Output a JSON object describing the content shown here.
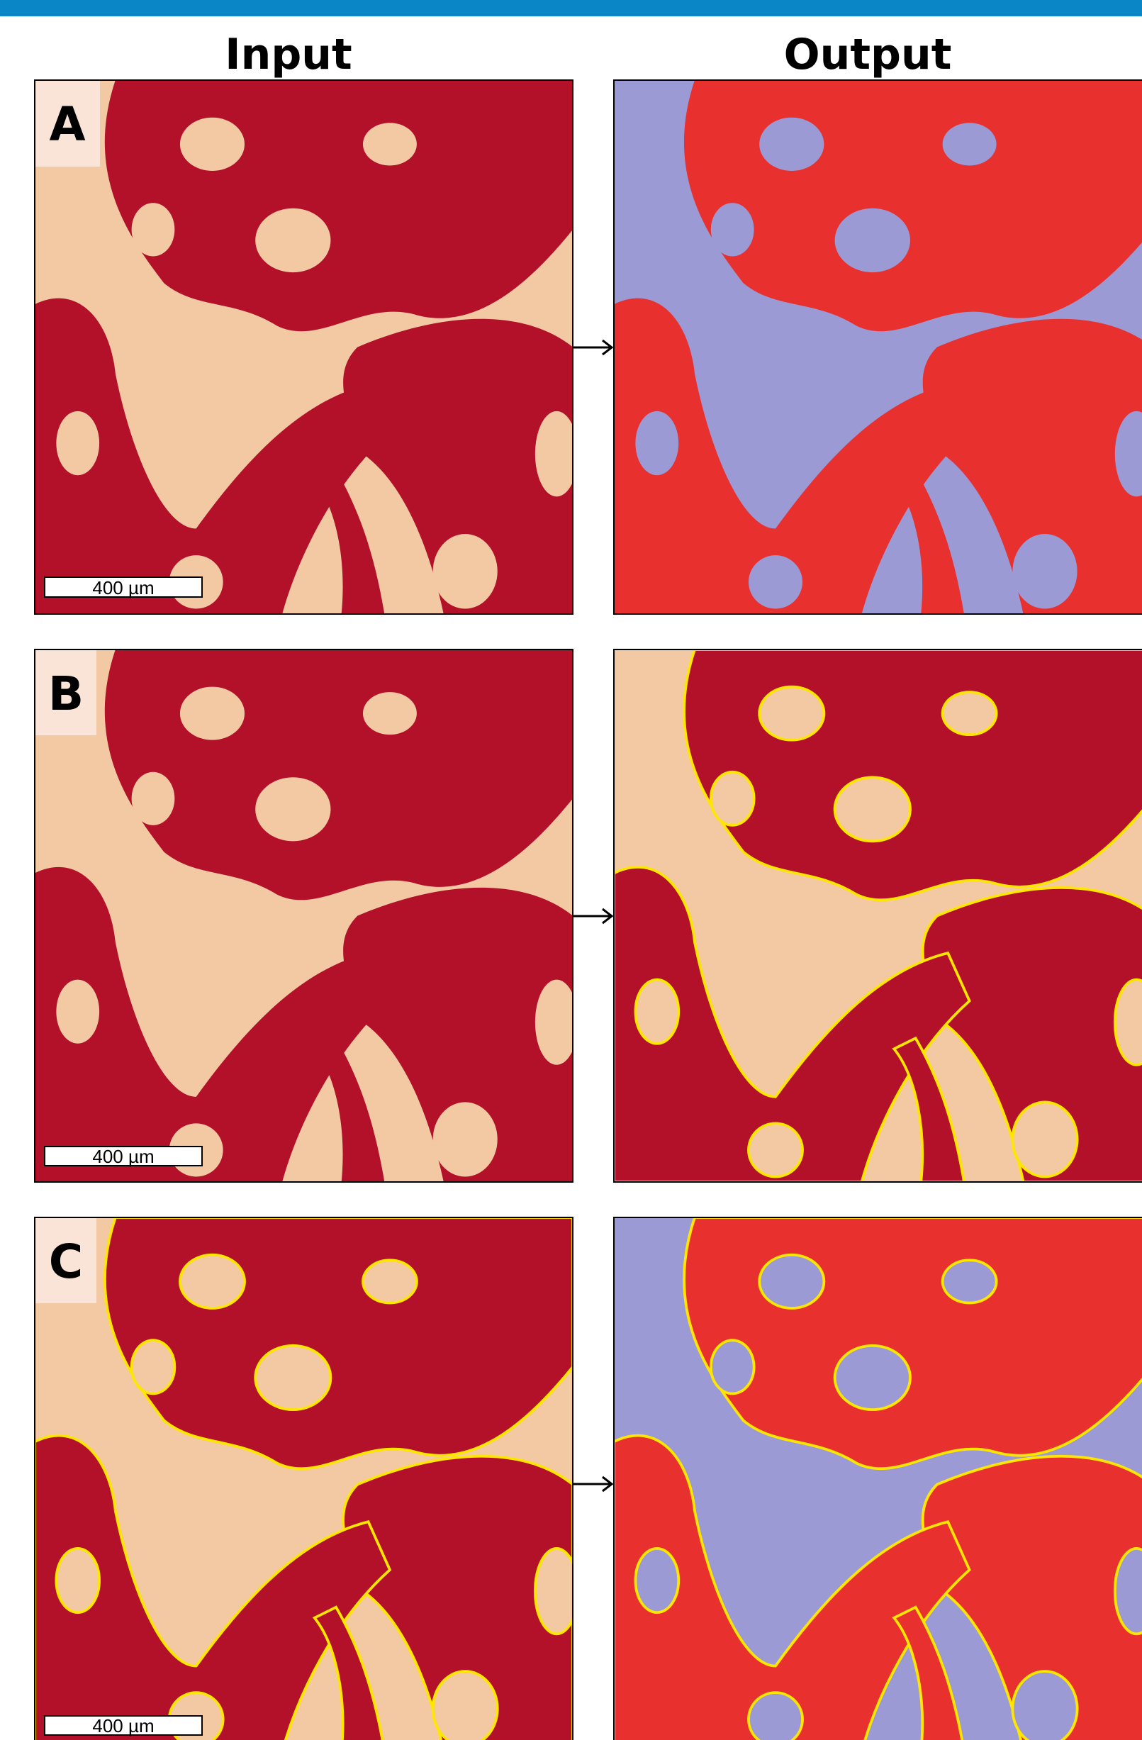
{
  "header": {
    "columns": [
      "Input",
      "Output"
    ]
  },
  "rows": [
    {
      "label": "A",
      "scale_bar": "400 µm"
    },
    {
      "label": "B",
      "scale_bar": "400 µm"
    },
    {
      "label": "C",
      "scale_bar": "400 µm"
    }
  ]
}
